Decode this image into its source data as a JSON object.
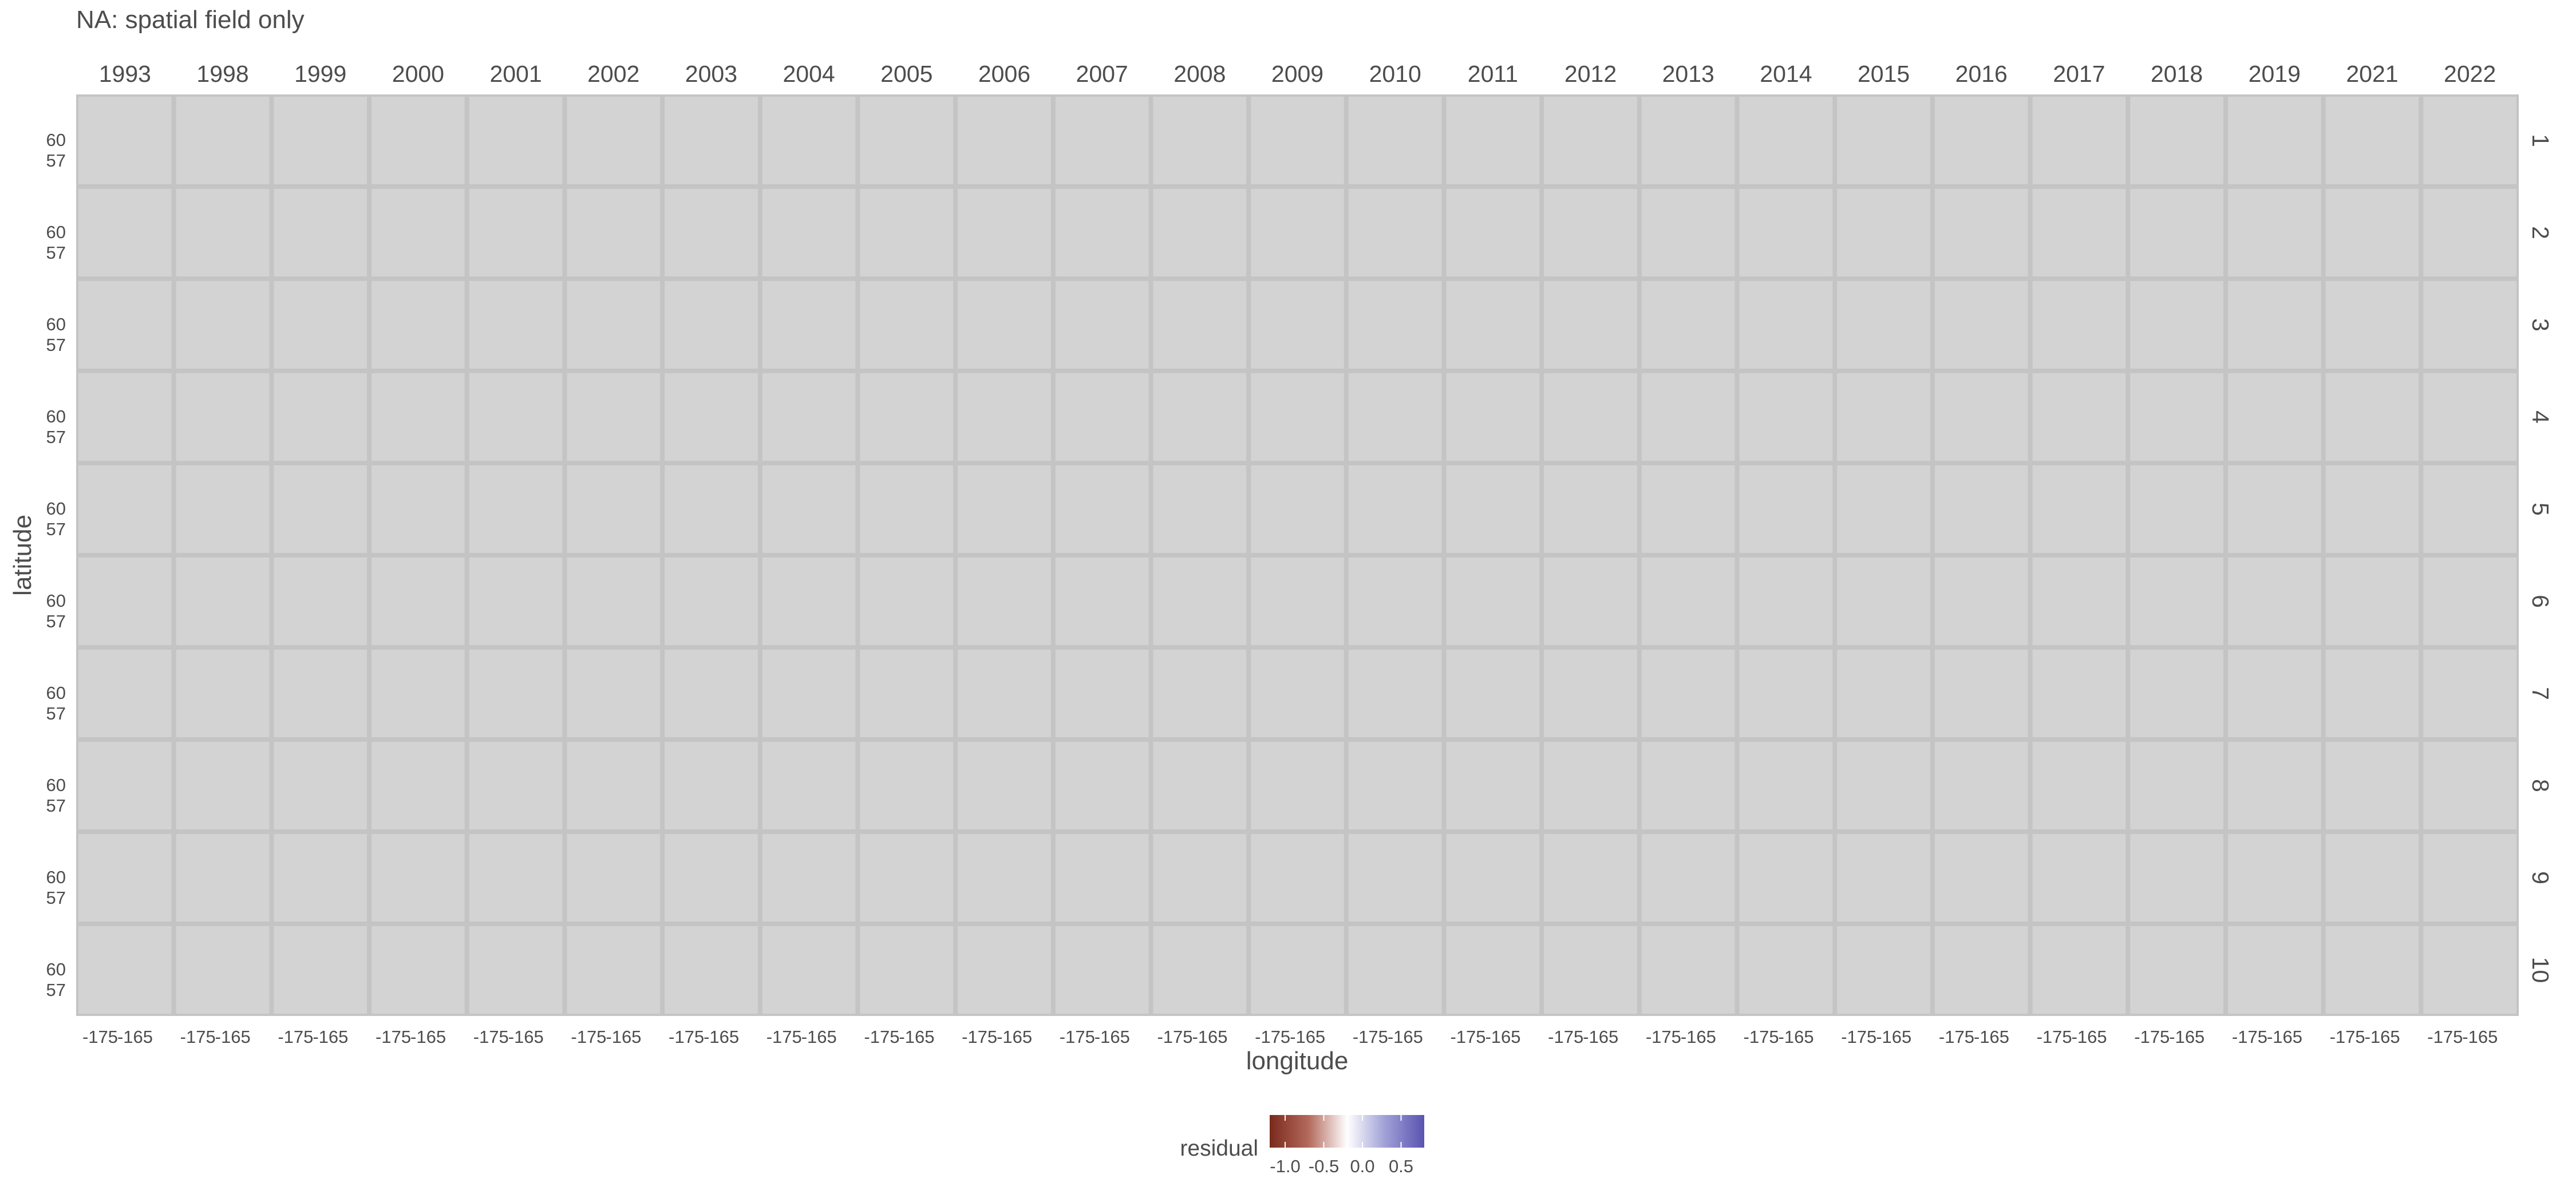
{
  "chart_data": {
    "type": "heatmap",
    "title": "NA: spatial field only",
    "xlabel": "longitude",
    "ylabel": "latitude",
    "facet_columns": [
      "1993",
      "1998",
      "1999",
      "2000",
      "2001",
      "2002",
      "2003",
      "2004",
      "2005",
      "2006",
      "2007",
      "2008",
      "2009",
      "2010",
      "2011",
      "2012",
      "2013",
      "2014",
      "2015",
      "2016",
      "2017",
      "2018",
      "2019",
      "2021",
      "2022"
    ],
    "facet_rows": [
      "1",
      "2",
      "3",
      "4",
      "5",
      "6",
      "7",
      "8",
      "9",
      "10"
    ],
    "x_tick_labels": [
      "-175",
      "-165"
    ],
    "y_tick_labels": [
      "60",
      "57"
    ],
    "x_ticks": [
      -175,
      -165
    ],
    "y_ticks": [
      60,
      57
    ],
    "panel_values": "all NA (no residuals plotted)",
    "panel_fill_color": "#d3d3d3",
    "legend": {
      "title": "residual",
      "position": "bottom",
      "ticks": [
        "-1.0",
        "-0.5",
        "0.0",
        "0.5"
      ],
      "tick_values": [
        -1.0,
        -0.5,
        0.0,
        0.5
      ],
      "range": [
        -1.2,
        0.8
      ],
      "colors": [
        "#7a2a1c",
        "#b3695c",
        "#ffffff",
        "#9f9fd6",
        "#5a54b0"
      ]
    },
    "grid": false
  }
}
